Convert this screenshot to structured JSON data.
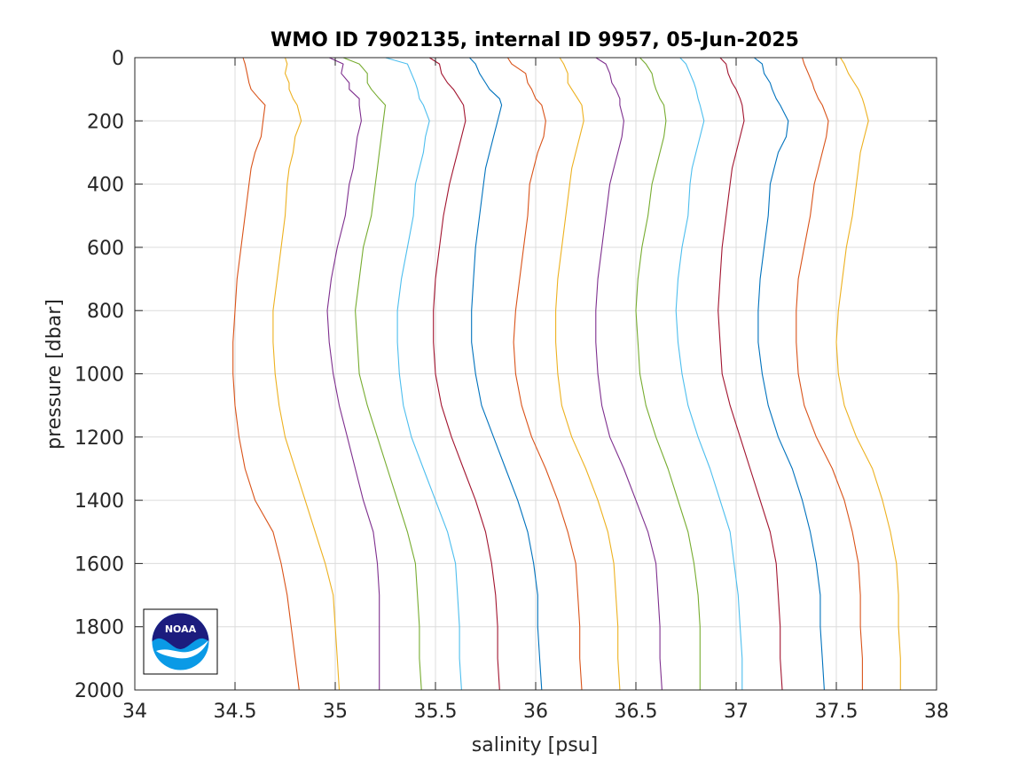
{
  "chart_data": {
    "type": "line",
    "title": "WMO ID 7902135, internal ID 9957, 05-Jun-2025",
    "xlabel": "salinity [psu]",
    "ylabel": "pressure [dbar]",
    "xlim": [
      34,
      38
    ],
    "ylim": [
      0,
      2000
    ],
    "y_reversed": true,
    "grid": true,
    "x_ticks": [
      34,
      34.5,
      35,
      35.5,
      36,
      36.5,
      37,
      37.5,
      38
    ],
    "x_tick_labels": [
      "34",
      "34.5",
      "35",
      "35.5",
      "36",
      "36.5",
      "37",
      "37.5",
      "38"
    ],
    "y_ticks": [
      0,
      200,
      400,
      600,
      800,
      1000,
      1200,
      1400,
      1600,
      1800,
      2000
    ],
    "y_tick_labels": [
      "0",
      "200",
      "400",
      "600",
      "800",
      "1000",
      "1200",
      "1400",
      "1600",
      "1800",
      "2000"
    ],
    "colors": {
      "axes": "#262626",
      "grid": "#dcdcdc",
      "noaa_dark": "#1c1c7e",
      "noaa_light": "#0a9ae6"
    },
    "logo_icon": "noaa-logo-icon",
    "logo_text": "NOAA",
    "pressure": [
      0,
      20,
      50,
      80,
      100,
      130,
      150,
      200,
      250,
      300,
      350,
      400,
      500,
      600,
      700,
      800,
      900,
      1000,
      1100,
      1200,
      1300,
      1400,
      1500,
      1600,
      1700,
      1800,
      1900,
      2000
    ],
    "series": [
      {
        "color": "#d95319",
        "values": [
          34.54,
          34.55,
          34.56,
          34.57,
          34.58,
          34.62,
          34.65,
          34.64,
          34.63,
          34.6,
          34.58,
          34.57,
          34.55,
          34.53,
          34.51,
          34.5,
          34.49,
          34.49,
          34.5,
          34.52,
          34.55,
          34.6,
          34.69,
          34.73,
          34.76,
          34.78,
          34.8,
          34.82
        ]
      },
      {
        "color": "#edb120",
        "values": [
          34.75,
          34.76,
          34.75,
          34.77,
          34.77,
          34.79,
          34.81,
          34.83,
          34.8,
          34.79,
          34.77,
          34.76,
          34.75,
          34.73,
          34.71,
          34.69,
          34.69,
          34.7,
          34.72,
          34.75,
          34.8,
          34.85,
          34.9,
          34.95,
          34.99,
          35.0,
          35.01,
          35.02
        ]
      },
      {
        "color": "#7e2f8e",
        "values": [
          34.97,
          35.04,
          35.03,
          35.07,
          35.07,
          35.12,
          35.12,
          35.13,
          35.11,
          35.1,
          35.09,
          35.07,
          35.05,
          35.01,
          34.98,
          34.96,
          34.97,
          34.99,
          35.02,
          35.06,
          35.1,
          35.14,
          35.19,
          35.21,
          35.22,
          35.22,
          35.22,
          35.22
        ]
      },
      {
        "color": "#77ac30",
        "values": [
          35.04,
          35.12,
          35.16,
          35.16,
          35.18,
          35.22,
          35.25,
          35.24,
          35.23,
          35.22,
          35.21,
          35.2,
          35.18,
          35.14,
          35.12,
          35.1,
          35.11,
          35.12,
          35.16,
          35.21,
          35.26,
          35.31,
          35.36,
          35.4,
          35.41,
          35.42,
          35.42,
          35.43
        ]
      },
      {
        "color": "#4dbeee",
        "values": [
          35.25,
          35.36,
          35.38,
          35.4,
          35.41,
          35.42,
          35.44,
          35.47,
          35.45,
          35.44,
          35.42,
          35.4,
          35.39,
          35.36,
          35.33,
          35.31,
          35.31,
          35.32,
          35.34,
          35.38,
          35.44,
          35.5,
          35.56,
          35.6,
          35.61,
          35.62,
          35.62,
          35.63
        ]
      },
      {
        "color": "#a2142f",
        "values": [
          35.47,
          35.52,
          35.53,
          35.56,
          35.59,
          35.62,
          35.64,
          35.65,
          35.63,
          35.61,
          35.59,
          35.57,
          35.54,
          35.52,
          35.5,
          35.49,
          35.49,
          35.5,
          35.53,
          35.58,
          35.64,
          35.7,
          35.75,
          35.78,
          35.8,
          35.81,
          35.81,
          35.82
        ]
      },
      {
        "color": "#0072bd",
        "values": [
          35.67,
          35.7,
          35.72,
          35.75,
          35.77,
          35.82,
          35.83,
          35.81,
          35.79,
          35.77,
          35.75,
          35.74,
          35.72,
          35.7,
          35.69,
          35.68,
          35.68,
          35.7,
          35.73,
          35.79,
          35.85,
          35.91,
          35.96,
          35.99,
          36.01,
          36.01,
          36.02,
          36.03
        ]
      },
      {
        "color": "#d95319",
        "values": [
          35.86,
          35.88,
          35.95,
          35.96,
          35.98,
          36.0,
          36.03,
          36.05,
          36.04,
          36.01,
          35.99,
          35.97,
          35.96,
          35.94,
          35.92,
          35.9,
          35.89,
          35.9,
          35.93,
          35.98,
          36.05,
          36.11,
          36.16,
          36.2,
          36.21,
          36.22,
          36.22,
          36.23
        ]
      },
      {
        "color": "#edb120",
        "values": [
          36.12,
          36.14,
          36.16,
          36.16,
          36.18,
          36.21,
          36.23,
          36.24,
          36.22,
          36.2,
          36.18,
          36.17,
          36.15,
          36.13,
          36.11,
          36.1,
          36.1,
          36.11,
          36.13,
          36.18,
          36.25,
          36.31,
          36.36,
          36.39,
          36.4,
          36.41,
          36.41,
          36.42
        ]
      },
      {
        "color": "#7e2f8e",
        "values": [
          36.3,
          36.35,
          36.37,
          36.38,
          36.4,
          36.42,
          36.42,
          36.44,
          36.43,
          36.41,
          36.39,
          36.37,
          36.35,
          36.33,
          36.31,
          36.3,
          36.3,
          36.31,
          36.33,
          36.37,
          36.44,
          36.5,
          36.56,
          36.6,
          36.61,
          36.62,
          36.62,
          36.63
        ]
      },
      {
        "color": "#77ac30",
        "values": [
          36.52,
          36.55,
          36.58,
          36.59,
          36.6,
          36.62,
          36.64,
          36.65,
          36.64,
          36.62,
          36.6,
          36.58,
          36.56,
          36.53,
          36.51,
          36.5,
          36.51,
          36.52,
          36.55,
          36.6,
          36.66,
          36.71,
          36.76,
          36.79,
          36.81,
          36.82,
          36.82,
          36.82
        ]
      },
      {
        "color": "#4dbeee",
        "values": [
          36.72,
          36.75,
          36.77,
          36.79,
          36.8,
          36.81,
          36.82,
          36.84,
          36.82,
          36.8,
          36.78,
          36.77,
          36.76,
          36.73,
          36.71,
          36.7,
          36.71,
          36.73,
          36.76,
          36.81,
          36.87,
          36.92,
          36.97,
          36.99,
          37.01,
          37.02,
          37.03,
          37.03
        ]
      },
      {
        "color": "#a2142f",
        "values": [
          36.92,
          36.95,
          36.96,
          36.98,
          37.0,
          37.02,
          37.03,
          37.04,
          37.02,
          37.0,
          36.98,
          36.97,
          36.95,
          36.93,
          36.92,
          36.91,
          36.92,
          36.93,
          36.97,
          37.02,
          37.07,
          37.12,
          37.17,
          37.2,
          37.21,
          37.22,
          37.22,
          37.23
        ]
      },
      {
        "color": "#0072bd",
        "values": [
          37.09,
          37.13,
          37.14,
          37.17,
          37.18,
          37.2,
          37.22,
          37.26,
          37.25,
          37.21,
          37.19,
          37.17,
          37.16,
          37.14,
          37.12,
          37.11,
          37.11,
          37.13,
          37.16,
          37.21,
          37.28,
          37.33,
          37.37,
          37.4,
          37.42,
          37.42,
          37.43,
          37.44
        ]
      },
      {
        "color": "#d95319",
        "values": [
          37.33,
          37.34,
          37.36,
          37.38,
          37.39,
          37.41,
          37.43,
          37.46,
          37.45,
          37.43,
          37.41,
          37.39,
          37.37,
          37.34,
          37.31,
          37.3,
          37.3,
          37.31,
          37.34,
          37.4,
          37.48,
          37.54,
          37.58,
          37.61,
          37.62,
          37.62,
          37.63,
          37.63
        ]
      },
      {
        "color": "#edb120",
        "values": [
          37.52,
          37.54,
          37.56,
          37.59,
          37.61,
          37.63,
          37.64,
          37.66,
          37.64,
          37.62,
          37.61,
          37.6,
          37.58,
          37.55,
          37.53,
          37.51,
          37.5,
          37.51,
          37.54,
          37.6,
          37.68,
          37.73,
          37.77,
          37.8,
          37.81,
          37.81,
          37.82,
          37.82
        ]
      }
    ]
  }
}
